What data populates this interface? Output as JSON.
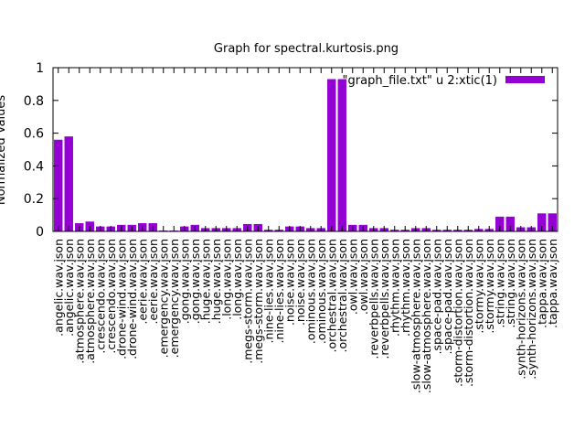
{
  "chart_data": {
    "type": "bar",
    "title": "Graph for spectral.kurtosis.png",
    "xlabel": "",
    "ylabel": "Normalized Values",
    "ylim": [
      0,
      1
    ],
    "yticks": [
      "0",
      "0.2",
      "0.4",
      "0.6",
      "0.8",
      "1"
    ],
    "grid": false,
    "legend": "top-right",
    "bar_color": "#9400d3",
    "series": [
      {
        "name": "\"graph_file.txt\" u 2:xtic(1)",
        "values": [
          0.56,
          0.58,
          0.05,
          0.06,
          0.03,
          0.03,
          0.04,
          0.04,
          0.05,
          0.05,
          0.005,
          0.005,
          0.03,
          0.04,
          0.02,
          0.02,
          0.02,
          0.02,
          0.045,
          0.045,
          0.01,
          0.01,
          0.03,
          0.03,
          0.02,
          0.02,
          0.93,
          0.93,
          0.04,
          0.04,
          0.02,
          0.02,
          0.01,
          0.01,
          0.02,
          0.02,
          0.01,
          0.01,
          0.01,
          0.01,
          0.015,
          0.015,
          0.09,
          0.09,
          0.025,
          0.025,
          0.11,
          0.11
        ]
      }
    ],
    "categories": [
      ".angelic.wav.json",
      ".angelic.wav.json",
      ".atmosphere.wav.json",
      ".atmosphere.wav.json",
      ".crescendo.wav.json",
      ".crescendo.wav.json",
      ".drone-wind.wav.json",
      ".drone-wind.wav.json",
      ".eerie.wav.json",
      ".eerie.wav.json",
      ".emergency.wav.json",
      ".emergency.wav.json",
      ".gong.wav.json",
      ".gong.wav.json",
      ".huge.wav.json",
      ".huge.wav.json",
      ".long.wav.json",
      ".long.wav.json",
      ".megs-storm.wav.json",
      ".megs-storm.wav.json",
      ".nine-lies.wav.json",
      ".nine-lies.wav.json",
      ".noise.wav.json",
      ".noise.wav.json",
      ".ominous.wav.json",
      ".ominous.wav.json",
      ".orchestral.wav.json",
      ".orchestral.wav.json",
      ".owl.wav.json",
      ".owl.wav.json",
      ".reverbpells.wav.json",
      ".reverbpells.wav.json",
      ".rhythm.wav.json",
      ".rhythm.wav.json",
      ".slow-atmosphere.wav.json",
      ".slow-atmosphere.wav.json",
      ".space-pad.wav.json",
      ".space-pad.wav.json",
      ".storm-distortion.wav.json",
      ".storm-distortion.wav.json",
      ".stormy.wav.json",
      ".stormy.wav.json",
      ".string.wav.json",
      ".string.wav.json",
      ".synth-horizons.wav.json",
      ".synth-horizons.wav.json",
      ".tappa.wav.json",
      ".tappa.wav.json"
    ]
  }
}
